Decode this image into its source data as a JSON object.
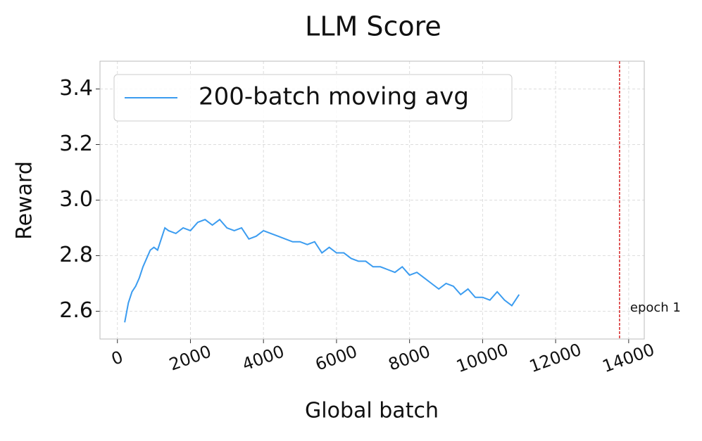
{
  "chart_data": {
    "type": "line",
    "title": "LLM Score",
    "x_label": "Global batch",
    "y_label": "Reward",
    "x": [
      200,
      300,
      400,
      500,
      600,
      700,
      800,
      900,
      1000,
      1100,
      1200,
      1300,
      1400,
      1600,
      1800,
      2000,
      2200,
      2400,
      2600,
      2800,
      3000,
      3200,
      3400,
      3600,
      3800,
      4000,
      4200,
      4400,
      4600,
      4800,
      5000,
      5200,
      5400,
      5600,
      5800,
      6000,
      6200,
      6400,
      6600,
      6800,
      7000,
      7200,
      7400,
      7600,
      7800,
      8000,
      8200,
      8400,
      8600,
      8800,
      9000,
      9200,
      9400,
      9600,
      9800,
      10000,
      10200,
      10400,
      10600,
      10800,
      11000
    ],
    "series": [
      {
        "name": "200-batch moving avg",
        "color": "#3b9cf0",
        "values": [
          2.56,
          2.63,
          2.67,
          2.69,
          2.72,
          2.76,
          2.79,
          2.82,
          2.83,
          2.82,
          2.86,
          2.9,
          2.89,
          2.88,
          2.9,
          2.89,
          2.92,
          2.93,
          2.91,
          2.93,
          2.9,
          2.89,
          2.9,
          2.86,
          2.87,
          2.89,
          2.88,
          2.87,
          2.86,
          2.85,
          2.85,
          2.84,
          2.85,
          2.81,
          2.83,
          2.81,
          2.81,
          2.79,
          2.78,
          2.78,
          2.76,
          2.76,
          2.75,
          2.74,
          2.76,
          2.73,
          2.74,
          2.72,
          2.7,
          2.68,
          2.7,
          2.69,
          2.66,
          2.68,
          2.65,
          2.65,
          2.64,
          2.67,
          2.64,
          2.62,
          2.66
        ]
      }
    ],
    "vlines": [
      {
        "x": 13750,
        "label": "epoch 1",
        "color": "#d62728"
      }
    ],
    "xlim": [
      -477,
      14427
    ],
    "ylim": [
      2.5,
      3.5
    ],
    "xticks": [
      0,
      2000,
      4000,
      6000,
      8000,
      10000,
      12000,
      14000
    ],
    "yticks": [
      2.6,
      2.8,
      {
        "value": 3,
        "label": "3.0"
      },
      3.2,
      3.4
    ],
    "grid": true,
    "legend": "upper left"
  }
}
